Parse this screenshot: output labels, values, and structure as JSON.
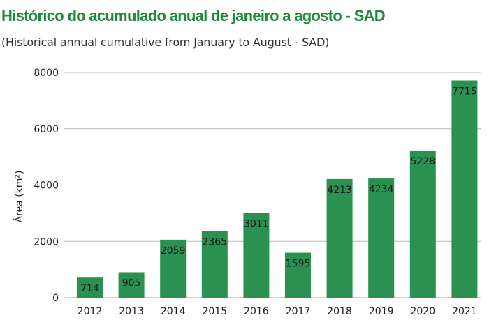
{
  "chart_data": {
    "type": "bar",
    "title": "Histórico do acumulado anual de janeiro a agosto - SAD",
    "subtitle": "(Historical annual cumulative from January to August - SAD)",
    "xlabel": "",
    "ylabel": "Área (km²)",
    "ylim": [
      0,
      8000
    ],
    "yticks": [
      0,
      2000,
      4000,
      6000,
      8000
    ],
    "categories": [
      "2012",
      "2013",
      "2014",
      "2015",
      "2016",
      "2017",
      "2018",
      "2019",
      "2020",
      "2021"
    ],
    "values": [
      714,
      905,
      2059,
      2365,
      3011,
      1595,
      4213,
      4234,
      5228,
      7715
    ],
    "bar_color": "#2a9150",
    "grid_color": "#b8b8b8",
    "title_color": "#1e8a3c"
  }
}
